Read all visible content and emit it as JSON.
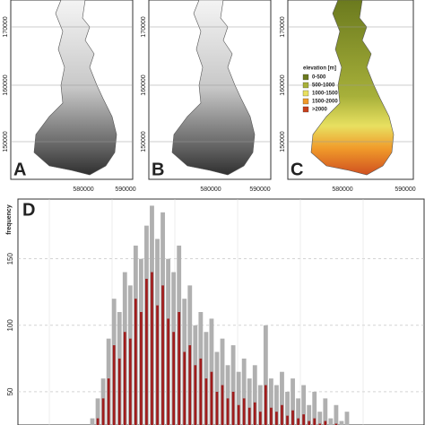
{
  "maps": {
    "panel_labels": [
      "A",
      "B",
      "C"
    ],
    "x_ticks": [
      "580000",
      "590000"
    ],
    "y_ticks": [
      "170000",
      "160000",
      "150000"
    ],
    "legend": {
      "title": "elevation [m]",
      "items": [
        {
          "label": "0-500",
          "color": "#6b7a1e"
        },
        {
          "label": "500-1000",
          "color": "#a7b03a"
        },
        {
          "label": "1000-1500",
          "color": "#e8e060"
        },
        {
          "label": "1500-2000",
          "color": "#f09a2a"
        },
        {
          "label": ">2000",
          "color": "#c8401c"
        }
      ]
    }
  },
  "chart_data": {
    "type": "bar",
    "panel_label": "D",
    "y_label": "frequency",
    "categories": [
      null,
      null,
      null,
      null,
      null,
      null,
      null,
      null,
      null,
      null,
      null,
      null,
      null,
      null,
      null,
      null,
      null,
      null,
      null,
      null,
      null,
      null,
      null,
      null,
      null,
      null,
      null,
      null,
      null,
      null,
      null,
      null,
      null,
      null,
      null,
      null,
      null,
      null,
      null,
      null,
      null,
      null,
      null,
      null,
      null,
      null,
      null,
      null
    ],
    "series": [
      {
        "color": "#b0b0b0",
        "values": [
          30,
          45,
          60,
          90,
          120,
          110,
          140,
          130,
          160,
          150,
          175,
          190,
          165,
          185,
          150,
          140,
          160,
          120,
          130,
          100,
          110,
          95,
          105,
          80,
          90,
          70,
          85,
          65,
          75,
          60,
          70,
          55,
          100,
          60,
          55,
          65,
          50,
          60,
          45,
          55,
          40,
          50,
          35,
          45,
          30,
          40,
          28,
          35
        ]
      },
      {
        "color": "#a01c1c",
        "values": [
          20,
          30,
          45,
          60,
          85,
          75,
          95,
          90,
          120,
          110,
          135,
          140,
          115,
          130,
          105,
          95,
          110,
          80,
          85,
          70,
          75,
          60,
          65,
          50,
          55,
          45,
          50,
          40,
          45,
          38,
          42,
          35,
          55,
          38,
          35,
          40,
          32,
          36,
          30,
          33,
          28,
          30,
          26,
          28,
          24,
          26,
          22,
          24
        ]
      }
    ],
    "ylim": [
      25,
      195
    ],
    "yticks": [
      50,
      100,
      150
    ],
    "grid": true
  }
}
